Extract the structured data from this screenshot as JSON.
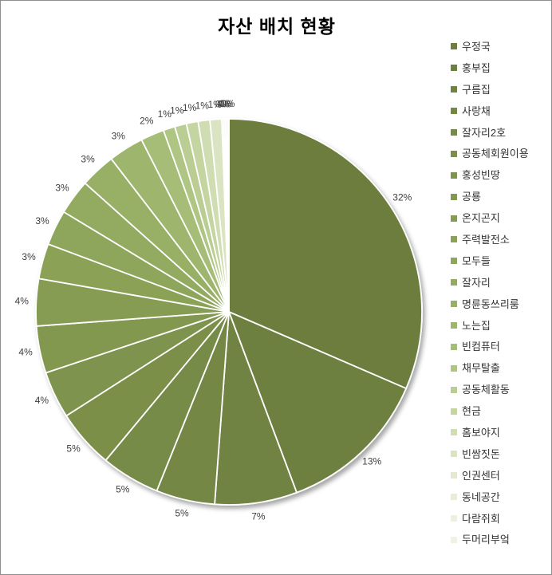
{
  "window": {
    "background": "#FFFFFF",
    "border_color": "#8E8E8E"
  },
  "chart_data": {
    "type": "pie",
    "title": "자산 배치 현황",
    "unit": "%",
    "legend_position": "right",
    "start_angle_deg": 0,
    "direction": "clockwise",
    "categories": [
      "우정국",
      "홍부집",
      "구름집",
      "사랑채",
      "잘자리2호",
      "공동체회원이용",
      "홍성빈땅",
      "공룡",
      "온지곤지",
      "주력발전소",
      "모두들",
      "잘자리",
      "명륜동쓰리룸",
      "노는집",
      "빈컴퓨터",
      "채무탈출",
      "공동체활동",
      "현금",
      "홈보야지",
      "빈쌈짓돈",
      "인권센터",
      "동네공간",
      "다람쥐회",
      "두머리부엌"
    ],
    "values": [
      32,
      13,
      7,
      5,
      5,
      5,
      4,
      4,
      4,
      3,
      3,
      3,
      3,
      3,
      2,
      1,
      1,
      1,
      1,
      1,
      0,
      0,
      0,
      0
    ],
    "display_labels": [
      "32%",
      "13%",
      "7%",
      "5%",
      "5%",
      "5%",
      "4%",
      "4%",
      "4%",
      "3%",
      "3%",
      "3%",
      "3%",
      "3%",
      "2%",
      "1%",
      "1%",
      "1%",
      "1%",
      "1%",
      "0%",
      "0%",
      "0%",
      "0%"
    ],
    "slice_colors": [
      "#6C7D3D",
      "#6E8040",
      "#718343",
      "#748745",
      "#778B48",
      "#7B8F4A",
      "#7E934D",
      "#829850",
      "#869C53",
      "#8AA157",
      "#8EA65B",
      "#93AB60",
      "#98B066",
      "#9DB56C",
      "#A5BD76",
      "#AFC584",
      "#BACD93",
      "#C5D5A2",
      "#D0DDB2",
      "#DBE4C2",
      "#E4EAD0",
      "#E9EDD8",
      "#EDF0DE",
      "#F0F2E3"
    ],
    "separator_color": "#FFFFFF",
    "label_color": "#3E3E3E",
    "title_color": "#000000"
  }
}
